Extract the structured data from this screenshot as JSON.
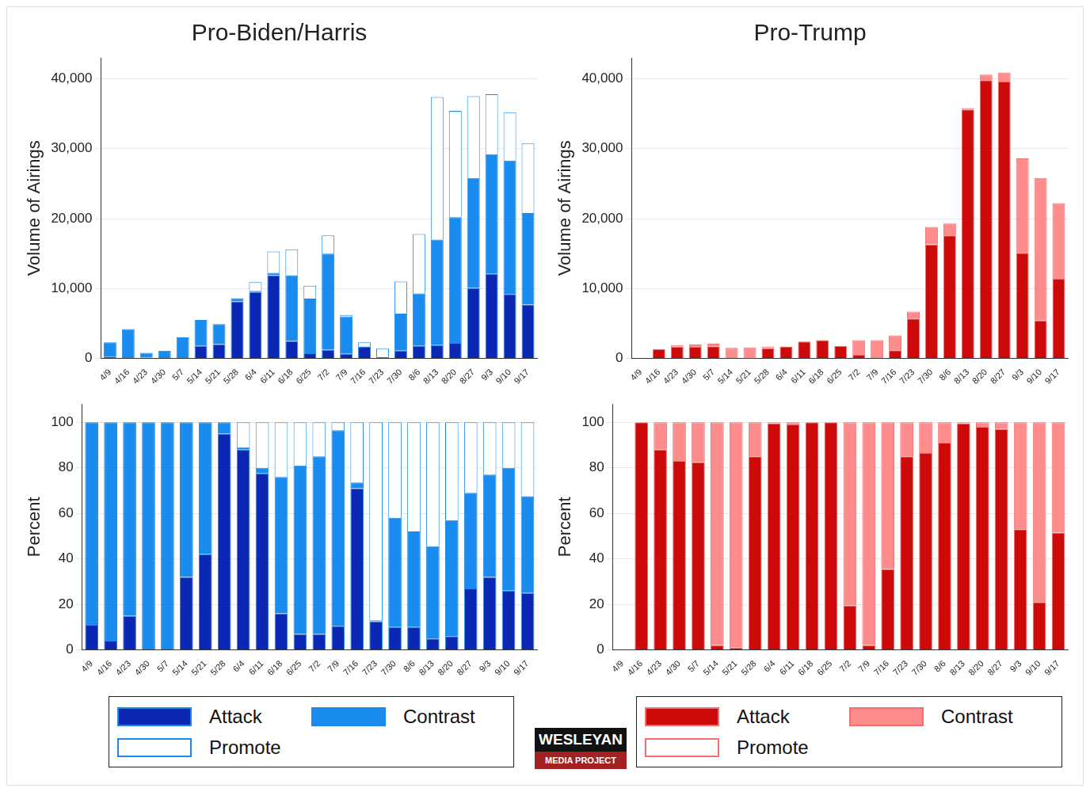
{
  "chart_data": [
    {
      "type": "bar",
      "title": "Pro-Biden/Harris",
      "ylabel": "Volume of Airings",
      "stacked": true,
      "grid": true,
      "color": "#1e88e5",
      "categories": [
        "4/9",
        "4/16",
        "4/23",
        "4/30",
        "5/7",
        "5/14",
        "5/21",
        "5/28",
        "6/4",
        "6/11",
        "6/18",
        "6/25",
        "7/2",
        "7/9",
        "7/16",
        "7/23",
        "7/30",
        "8/6",
        "8/13",
        "8/20",
        "8/27",
        "9/3",
        "9/10",
        "9/17"
      ],
      "ylim": [
        0,
        43000
      ],
      "yticks": [
        0,
        {
          "value": 10000,
          "label": "10,000"
        },
        {
          "value": 20000,
          "label": "20,000"
        },
        {
          "value": 30000,
          "label": "30,000"
        },
        {
          "value": 40000,
          "label": "40,000"
        }
      ],
      "series": [
        {
          "name": "Attack",
          "color": "#0a28b4",
          "values": [
            250,
            170,
            120,
            0,
            0,
            1800,
            2050,
            8150,
            9500,
            11900,
            2500,
            750,
            1250,
            650,
            1650,
            180,
            1100,
            1800,
            1900,
            2200,
            10100,
            12100,
            9200,
            7700
          ]
        },
        {
          "name": "Contrast",
          "color": "#1a8cf0",
          "values": [
            2050,
            4030,
            680,
            1100,
            3000,
            3700,
            2850,
            450,
            150,
            350,
            9400,
            7800,
            13750,
            5350,
            60,
            10,
            5300,
            7500,
            15100,
            18000,
            15700,
            17100,
            19100,
            13100
          ]
        },
        {
          "name": "Promote",
          "color": "#ffffff",
          "values": [
            0,
            0,
            0,
            0,
            0,
            0,
            0,
            0,
            1250,
            3050,
            3700,
            1850,
            2600,
            200,
            600,
            1210,
            4600,
            8500,
            20400,
            15200,
            11700,
            8600,
            6900,
            10000
          ]
        }
      ]
    },
    {
      "type": "bar",
      "title": "Pro-Trump",
      "ylabel": "Volume of Airings",
      "stacked": true,
      "grid": true,
      "color": "#f07070",
      "categories": [
        "4/9",
        "4/16",
        "4/23",
        "4/30",
        "5/7",
        "5/14",
        "5/21",
        "5/28",
        "6/4",
        "6/11",
        "6/18",
        "6/25",
        "7/2",
        "7/9",
        "7/16",
        "7/23",
        "7/30",
        "8/6",
        "8/13",
        "8/20",
        "8/27",
        "9/3",
        "9/10",
        "9/17"
      ],
      "ylim": [
        0,
        43000
      ],
      "yticks": [
        0,
        {
          "value": 10000,
          "label": "10,000"
        },
        {
          "value": 20000,
          "label": "20,000"
        },
        {
          "value": 30000,
          "label": "30,000"
        },
        {
          "value": 40000,
          "label": "40,000"
        }
      ],
      "series": [
        {
          "name": "Attack",
          "color": "#cc0a0a",
          "values": [
            null,
            1300,
            1670,
            1660,
            1730,
            30,
            15,
            1450,
            1690,
            2400,
            2600,
            1800,
            510,
            50,
            1170,
            5700,
            16300,
            17600,
            35600,
            39800,
            39600,
            15100,
            5400,
            11400
          ]
        },
        {
          "name": "Contrast",
          "color": "#ff8c8c",
          "values": [
            null,
            0,
            230,
            340,
            370,
            1470,
            1585,
            250,
            10,
            30,
            0,
            0,
            2090,
            2550,
            2130,
            1000,
            2500,
            1700,
            200,
            800,
            1300,
            13500,
            20400,
            10800
          ]
        },
        {
          "name": "Promote",
          "color": "#ffffff",
          "values": [
            null,
            0,
            0,
            0,
            0,
            0,
            0,
            0,
            0,
            0,
            0,
            0,
            0,
            0,
            0,
            0,
            0,
            0,
            0,
            0,
            0,
            0,
            0,
            0
          ]
        }
      ]
    },
    {
      "type": "bar",
      "ylabel": "Percent",
      "stacked": true,
      "grid": true,
      "color": "#1e88e5",
      "legend": "bottom",
      "categories": [
        "4/9",
        "4/16",
        "4/23",
        "4/30",
        "5/7",
        "5/14",
        "5/21",
        "5/28",
        "6/4",
        "6/11",
        "6/18",
        "6/25",
        "7/2",
        "7/9",
        "7/16",
        "7/23",
        "7/30",
        "8/6",
        "8/13",
        "8/20",
        "8/27",
        "9/3",
        "9/10",
        "9/17"
      ],
      "ylim": [
        0,
        108
      ],
      "yticks": [
        0,
        20,
        40,
        60,
        80,
        100
      ],
      "series": [
        {
          "name": "Attack",
          "color": "#0a28b4",
          "values": [
            11,
            4,
            15,
            0,
            0,
            32,
            42,
            95,
            88,
            77.5,
            16,
            7,
            7,
            10.5,
            71,
            12.5,
            10,
            10,
            5,
            6,
            27,
            32,
            26,
            25
          ]
        },
        {
          "name": "Contrast",
          "color": "#1a8cf0",
          "values": [
            89,
            96,
            85,
            100,
            100,
            68,
            58,
            5,
            1,
            2.5,
            60,
            74,
            78,
            86,
            2.5,
            0.5,
            48,
            42,
            40.5,
            51,
            42,
            45,
            54,
            42.5
          ]
        },
        {
          "name": "Promote",
          "color": "#ffffff",
          "values": [
            0,
            0,
            0,
            0,
            0,
            0,
            0,
            0,
            11,
            20,
            24,
            19,
            15,
            3.5,
            26.5,
            87,
            42,
            48,
            54.5,
            43,
            31,
            23,
            20,
            32.5
          ]
        }
      ]
    },
    {
      "type": "bar",
      "ylabel": "Percent",
      "stacked": true,
      "grid": true,
      "color": "#f07070",
      "legend": "bottom",
      "categories": [
        "4/9",
        "4/16",
        "4/23",
        "4/30",
        "5/7",
        "5/14",
        "5/21",
        "5/28",
        "6/4",
        "6/11",
        "6/18",
        "6/25",
        "7/2",
        "7/9",
        "7/16",
        "7/23",
        "7/30",
        "8/6",
        "8/13",
        "8/20",
        "8/27",
        "9/3",
        "9/10",
        "9/17"
      ],
      "ylim": [
        0,
        108
      ],
      "yticks": [
        0,
        20,
        40,
        60,
        80,
        100
      ],
      "series": [
        {
          "name": "Attack",
          "color": "#cc0a0a",
          "values": [
            null,
            100,
            88,
            83,
            82.5,
            2,
            1,
            85,
            99.5,
            99,
            100,
            100,
            19.5,
            2,
            35.5,
            85,
            86.5,
            91,
            99.5,
            98,
            97,
            53,
            21,
            51.5
          ]
        },
        {
          "name": "Contrast",
          "color": "#ff8c8c",
          "values": [
            null,
            0,
            12,
            17,
            17.5,
            98,
            99,
            15,
            0.5,
            1,
            0,
            0,
            80.5,
            98,
            64.5,
            15,
            13.5,
            9,
            0.5,
            2,
            3,
            47,
            79,
            48.5
          ]
        },
        {
          "name": "Promote",
          "color": "#ffffff",
          "values": [
            null,
            0,
            0,
            0,
            0,
            0,
            0,
            0,
            0,
            0,
            0,
            0,
            0,
            0,
            0,
            0,
            0,
            0,
            0,
            0,
            0,
            0,
            0,
            0
          ]
        }
      ]
    }
  ],
  "logo": {
    "line1": "WESLEYAN",
    "line2": "MEDIA PROJECT"
  }
}
